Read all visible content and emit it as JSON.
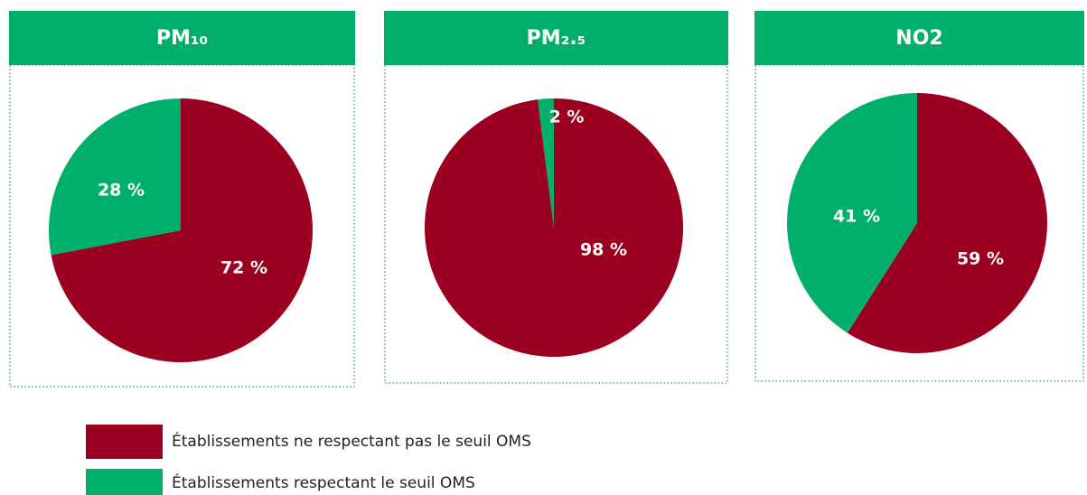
{
  "chart_data": [
    {
      "type": "pie",
      "title": "PM₁₀",
      "categories": [
        "Établissements ne respectant pas le seuil OMS",
        "Établissements respectant le seuil OMS"
      ],
      "values": [
        72,
        28
      ],
      "value_labels": [
        "72 %",
        "28 %"
      ],
      "colors": [
        "#9b0020",
        "#00b06a"
      ]
    },
    {
      "type": "pie",
      "title": "PM₂.₅",
      "categories": [
        "Établissements ne respectant pas le seuil OMS",
        "Établissements respectant le seuil OMS"
      ],
      "values": [
        98,
        2
      ],
      "value_labels": [
        "98 %",
        "2 %"
      ],
      "colors": [
        "#9b0020",
        "#00b06a"
      ]
    },
    {
      "type": "pie",
      "title": "NO2",
      "categories": [
        "Établissements ne respectant pas le seuil OMS",
        "Établissements respectant le seuil OMS"
      ],
      "values": [
        59,
        41
      ],
      "value_labels": [
        "59 %",
        "41 %"
      ],
      "colors": [
        "#9b0020",
        "#00b06a"
      ]
    }
  ]
}
